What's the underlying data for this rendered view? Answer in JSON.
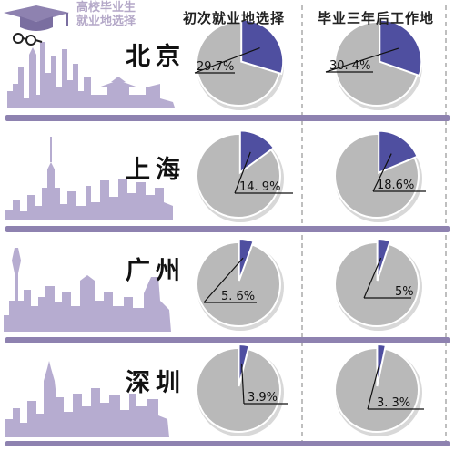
{
  "header": {
    "title_line1": "高校毕业生",
    "title_line2": "就业地选择",
    "col_first": "初次就业地选择",
    "col_later": "毕业三年后工作地"
  },
  "colors": {
    "slice_highlight": "#4f4fa0",
    "pie_rest": "#b9b9b9",
    "divider": "#8e82b0",
    "skyline": "#b6acd0"
  },
  "chart_data": {
    "type": "pie",
    "categories": [
      "北京",
      "上海",
      "广州",
      "深圳"
    ],
    "series": [
      {
        "name": "初次就业地选择",
        "values": [
          29.7,
          14.9,
          5.6,
          3.9
        ]
      },
      {
        "name": "毕业三年后工作地",
        "values": [
          30.4,
          18.6,
          5,
          3.3
        ]
      }
    ],
    "labels": {
      "first": [
        "29.7%",
        "14. 9%",
        "5. 6%",
        "3.9%"
      ],
      "later": [
        "30. 4%",
        "18.6%",
        "5%",
        "3. 3%"
      ]
    },
    "units": "%"
  }
}
